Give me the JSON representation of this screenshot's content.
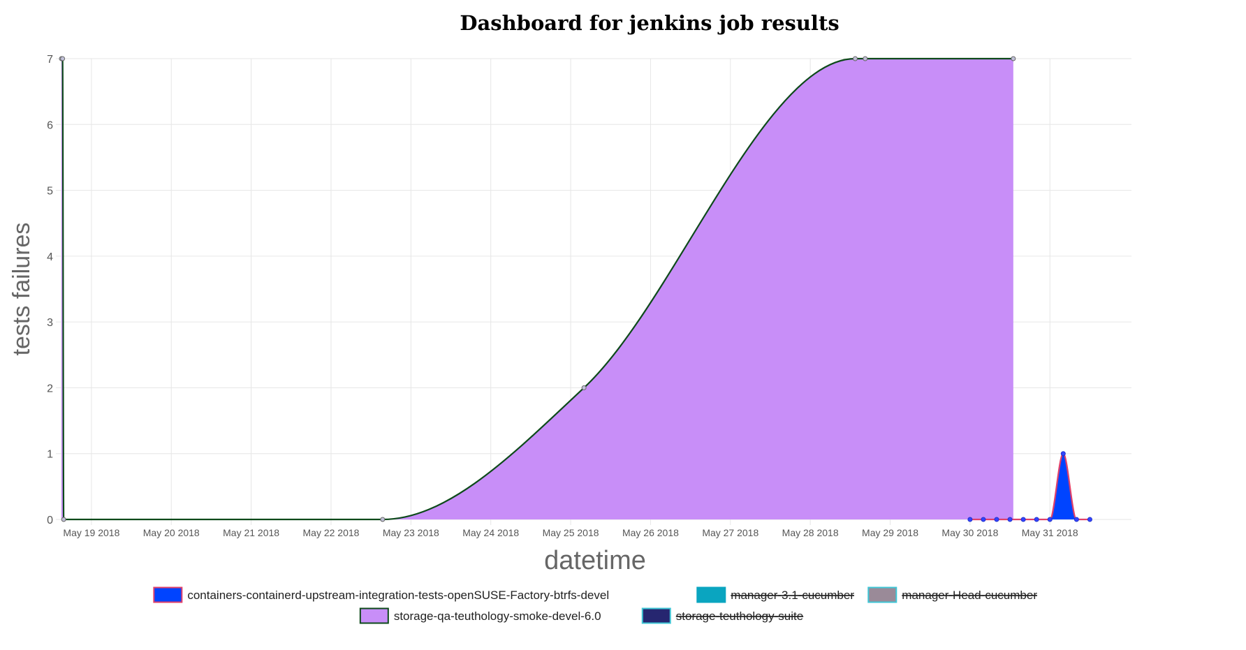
{
  "chart_data": {
    "type": "area",
    "title": "Dashboard for jenkins job results",
    "xlabel": "datetime",
    "ylabel": "tests failures",
    "ylim": [
      0,
      7
    ],
    "yticks": [
      "0",
      "1",
      "2",
      "3",
      "4",
      "5",
      "6",
      "7"
    ],
    "xlim": [
      "2018-05-18 15:00",
      "2018-06-01 00:30"
    ],
    "xticks": [
      {
        "label": "May 19 2018",
        "date": "2018-05-19"
      },
      {
        "label": "May 20 2018",
        "date": "2018-05-20"
      },
      {
        "label": "May 21 2018",
        "date": "2018-05-21"
      },
      {
        "label": "May 22 2018",
        "date": "2018-05-22"
      },
      {
        "label": "May 23 2018",
        "date": "2018-05-23"
      },
      {
        "label": "May 24 2018",
        "date": "2018-05-24"
      },
      {
        "label": "May 25 2018",
        "date": "2018-05-25"
      },
      {
        "label": "May 26 2018",
        "date": "2018-05-26"
      },
      {
        "label": "May 27 2018",
        "date": "2018-05-27"
      },
      {
        "label": "May 28 2018",
        "date": "2018-05-28"
      },
      {
        "label": "May 29 2018",
        "date": "2018-05-29"
      },
      {
        "label": "May 30 2018",
        "date": "2018-05-30"
      },
      {
        "label": "May 31 2018",
        "date": "2018-05-31"
      }
    ],
    "grid": true,
    "legend_position": "bottom",
    "series": [
      {
        "name": "containers-containerd-upstream-integration-tests-openSUSE-Factory-btrfs-devel",
        "fill": "#0044ff",
        "stroke": "#e0406a",
        "hidden": false,
        "points": [
          {
            "x": "2018-05-30 00:00",
            "y": 0
          },
          {
            "x": "2018-05-30 04:00",
            "y": 0
          },
          {
            "x": "2018-05-30 08:00",
            "y": 0
          },
          {
            "x": "2018-05-30 12:00",
            "y": 0
          },
          {
            "x": "2018-05-30 16:00",
            "y": 0
          },
          {
            "x": "2018-05-30 20:00",
            "y": 0
          },
          {
            "x": "2018-05-31 00:00",
            "y": 0
          },
          {
            "x": "2018-05-31 04:00",
            "y": 1
          },
          {
            "x": "2018-05-31 08:00",
            "y": 0
          },
          {
            "x": "2018-05-31 12:00",
            "y": 0
          }
        ]
      },
      {
        "name": "manager-3.1-cucumber",
        "fill": "#0aa5c0",
        "stroke": "#0aa5c0",
        "hidden": true,
        "points": []
      },
      {
        "name": "manager-Head-cucumber",
        "fill": "#9a8a98",
        "stroke": "#3fc5d5",
        "hidden": true,
        "points": []
      },
      {
        "name": "storage-qa-teuthology-smoke-devel-6.0",
        "fill": "#c88ef8",
        "stroke": "#0d4a1a",
        "hidden": false,
        "points": [
          {
            "x": "2018-05-18 15:00",
            "y": 7
          },
          {
            "x": "2018-05-18 15:20",
            "y": 7
          },
          {
            "x": "2018-05-18 15:40",
            "y": 0
          },
          {
            "x": "2018-05-22 15:30",
            "y": 0
          },
          {
            "x": "2018-05-25 04:00",
            "y": 2
          },
          {
            "x": "2018-05-28 13:30",
            "y": 7
          },
          {
            "x": "2018-05-28 16:30",
            "y": 7
          },
          {
            "x": "2018-05-30 13:00",
            "y": 7
          }
        ]
      },
      {
        "name": "storage-teuthology-suite",
        "fill": "#262670",
        "stroke": "#3fc5d5",
        "hidden": true,
        "points": []
      }
    ]
  }
}
